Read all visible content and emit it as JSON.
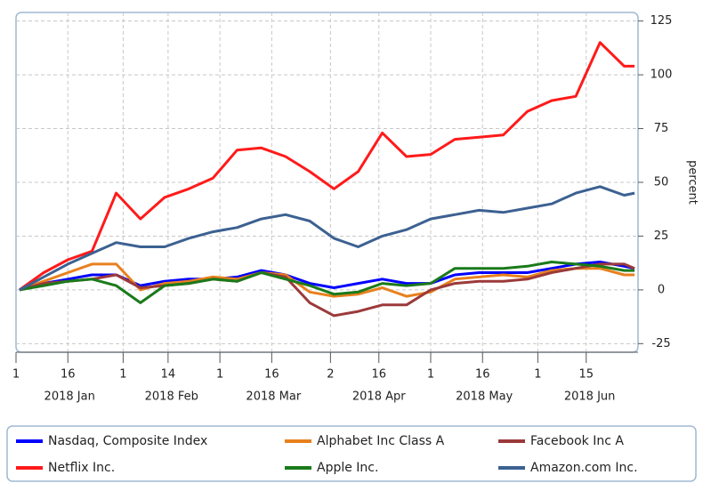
{
  "chart_data": {
    "type": "line",
    "y_label": "percent",
    "x": [
      "2018-01-02",
      "2018-01-09",
      "2018-01-16",
      "2018-01-23",
      "2018-01-30",
      "2018-02-06",
      "2018-02-13",
      "2018-02-20",
      "2018-02-27",
      "2018-03-06",
      "2018-03-13",
      "2018-03-20",
      "2018-03-27",
      "2018-04-03",
      "2018-04-10",
      "2018-04-17",
      "2018-04-24",
      "2018-05-01",
      "2018-05-08",
      "2018-05-15",
      "2018-05-22",
      "2018-05-29",
      "2018-06-05",
      "2018-06-12",
      "2018-06-19",
      "2018-06-26",
      "2018-06-29"
    ],
    "xlim": [
      "2018-01-01",
      "2018-06-30"
    ],
    "xticks": [
      {
        "value": "2018-01-01",
        "label": "1"
      },
      {
        "value": "2018-01-16",
        "label": "16"
      },
      {
        "value": "2018-02-01",
        "label": "1"
      },
      {
        "value": "2018-02-14",
        "label": "14"
      },
      {
        "value": "2018-03-01",
        "label": "1"
      },
      {
        "value": "2018-03-16",
        "label": "16"
      },
      {
        "value": "2018-04-02",
        "label": "2"
      },
      {
        "value": "2018-04-16",
        "label": "16"
      },
      {
        "value": "2018-05-01",
        "label": "1"
      },
      {
        "value": "2018-05-16",
        "label": "16"
      },
      {
        "value": "2018-06-01",
        "label": "1"
      },
      {
        "value": "2018-06-15",
        "label": "15"
      }
    ],
    "month_labels": [
      {
        "value": "2018-01",
        "label": "2018 Jan"
      },
      {
        "value": "2018-02",
        "label": "2018 Feb"
      },
      {
        "value": "2018-03",
        "label": "2018 Mar"
      },
      {
        "value": "2018-04",
        "label": "2018 Apr"
      },
      {
        "value": "2018-05",
        "label": "2018 May"
      },
      {
        "value": "2018-06",
        "label": "2018 Jun"
      }
    ],
    "ylim": [
      -29,
      129
    ],
    "yticks": [
      -25,
      0,
      25,
      50,
      75,
      100,
      125
    ],
    "grid": true,
    "legend": "bottom",
    "series": [
      {
        "name": "Nasdaq, Composite Index",
        "color": "#0000ff",
        "values": [
          0,
          3,
          5,
          7,
          7,
          2,
          4,
          5,
          5,
          6,
          9,
          7,
          3,
          1,
          3,
          5,
          3,
          3,
          7,
          8,
          8,
          8,
          10,
          12,
          13,
          11,
          10
        ]
      },
      {
        "name": "Alphabet Inc Class A",
        "color": "#e8801e",
        "values": [
          0,
          4,
          8,
          12,
          12,
          0,
          3,
          4,
          6,
          5,
          8,
          7,
          -1,
          -3,
          -2,
          1,
          -3,
          -1,
          5,
          6,
          7,
          6,
          9,
          10,
          10,
          7,
          7
        ]
      },
      {
        "name": "Facebook Inc A",
        "color": "#9b3a3a",
        "values": [
          0,
          3,
          4,
          5,
          7,
          1,
          2,
          3,
          5,
          4,
          8,
          6,
          -6,
          -12,
          -10,
          -7,
          -7,
          0,
          3,
          4,
          4,
          5,
          8,
          10,
          12,
          12,
          10
        ]
      },
      {
        "name": "Netflix Inc.",
        "color": "#ff1a1a",
        "values": [
          0,
          8,
          14,
          18,
          45,
          33,
          43,
          47,
          52,
          65,
          66,
          62,
          55,
          47,
          55,
          73,
          62,
          63,
          70,
          71,
          72,
          83,
          88,
          90,
          115,
          104,
          104
        ]
      },
      {
        "name": "Apple Inc.",
        "color": "#1a7a1a",
        "values": [
          0,
          2,
          4,
          5,
          2,
          -6,
          2,
          3,
          5,
          4,
          8,
          5,
          2,
          -2,
          -1,
          3,
          2,
          3,
          10,
          10,
          10,
          11,
          13,
          12,
          11,
          9,
          9
        ]
      },
      {
        "name": "Amazon.com Inc.",
        "color": "#3c6191",
        "values": [
          0,
          6,
          12,
          17,
          22,
          20,
          20,
          24,
          27,
          29,
          33,
          35,
          32,
          24,
          20,
          25,
          28,
          33,
          35,
          37,
          36,
          38,
          40,
          45,
          48,
          44,
          45
        ]
      }
    ]
  }
}
